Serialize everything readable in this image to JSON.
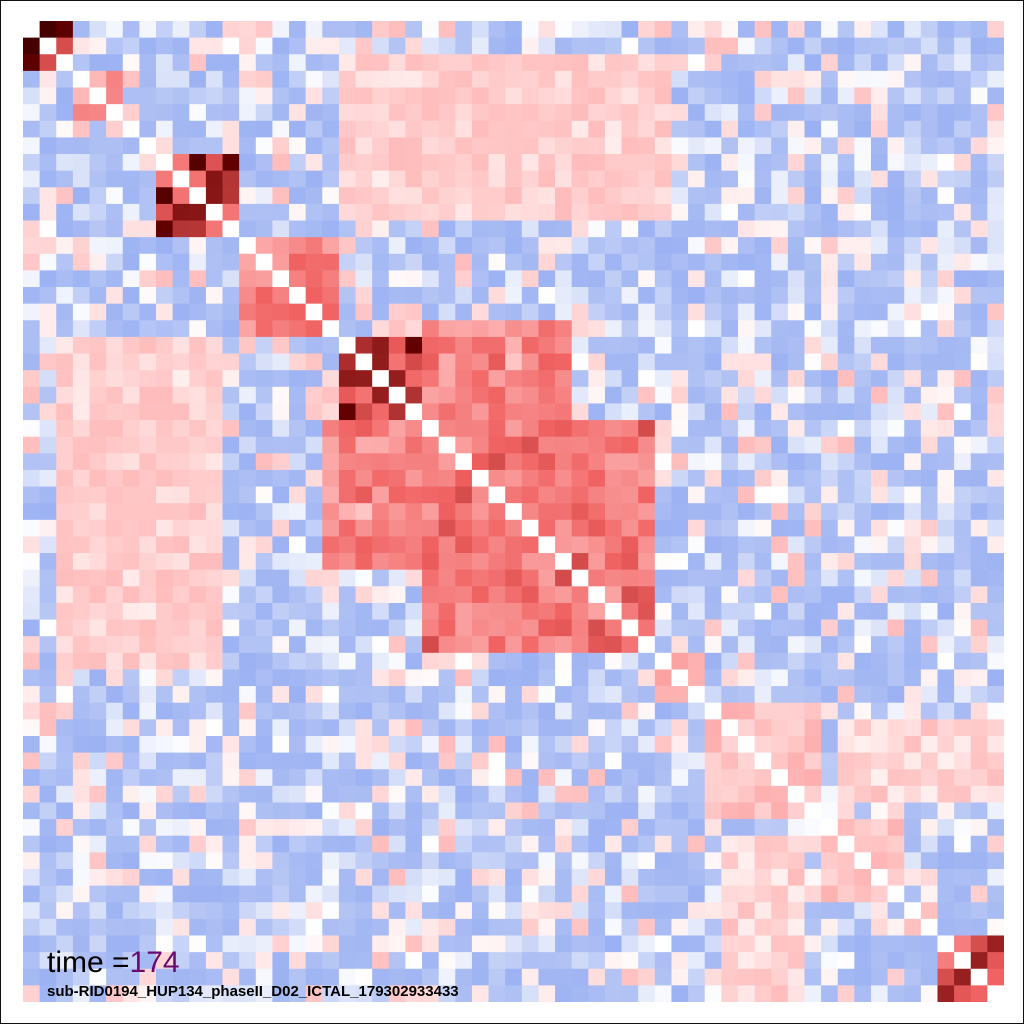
{
  "time_prefix": "time =",
  "time_value": "174",
  "recording_id": "sub-RID0194_HUP134_phaseII_D02_ICTAL_179302933433",
  "colors": {
    "negative": "#6e8ff0",
    "weak_negative": "#b4c4f4",
    "neutral": "#ffffff",
    "weak_positive": "#ffbcbc",
    "positive": "#f06060",
    "strong_positive": "#6b0000",
    "max": "#3a0000",
    "time_value_color": "#6b0a6e"
  },
  "chart_data": {
    "type": "heatmap",
    "title": "",
    "xlabel": "",
    "ylabel": "",
    "n_channels": 59,
    "value_range": [
      -1,
      1
    ],
    "diagonal_value": 1,
    "grid": false,
    "colormap": "diverging blue-white-red (coolwarm)",
    "strong_blocks": [
      {
        "channels": [
          0,
          2
        ],
        "level": 0.95
      },
      {
        "channels": [
          3,
          5
        ],
        "level": 0.35
      },
      {
        "channels": [
          8,
          12
        ],
        "level": 0.9
      },
      {
        "channels": [
          13,
          18
        ],
        "level": 0.5
      },
      {
        "channels": [
          19,
          23
        ],
        "level": 0.9
      },
      {
        "channels": [
          24,
          37
        ],
        "level": 0.55
      },
      {
        "channels": [
          38,
          40
        ],
        "level": 0.25
      },
      {
        "channels": [
          41,
          47
        ],
        "level": 0.2
      },
      {
        "channels": [
          48,
          52
        ],
        "level": 0.2
      },
      {
        "channels": [
          55,
          58
        ],
        "level": 0.8
      }
    ],
    "cross_blocks": [
      {
        "rows": [
          19,
          23
        ],
        "cols": [
          24,
          32
        ],
        "level": 0.35
      },
      {
        "rows": [
          24,
          32
        ],
        "cols": [
          18,
          23
        ],
        "level": 0.3
      },
      {
        "rows": [
          2,
          11
        ],
        "cols": [
          19,
          38
        ],
        "level": 0.1
      },
      {
        "rows": [
          19,
          38
        ],
        "cols": [
          2,
          11
        ],
        "level": 0.1
      },
      {
        "rows": [
          42,
          46
        ],
        "cols": [
          49,
          58
        ],
        "level": 0.1
      }
    ]
  }
}
